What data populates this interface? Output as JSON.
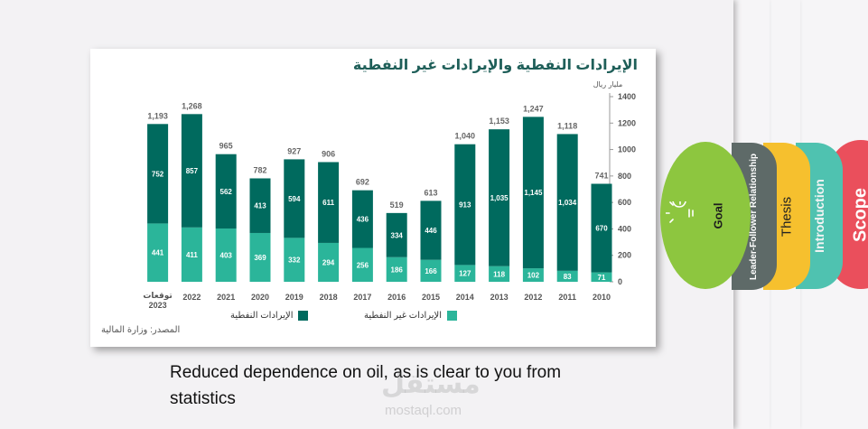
{
  "chart": {
    "title": "الإيرادات النفطية والإيرادات غير النفطية",
    "unit": "مليار ريال",
    "source": "المصدر: وزارة المالية",
    "legend": {
      "oil": "الإيرادات النفطية",
      "non_oil": "الإيرادات غير النفطية"
    }
  },
  "chart_data": {
    "type": "bar",
    "stacked": true,
    "categories": [
      "2010",
      "2011",
      "2012",
      "2013",
      "2014",
      "2015",
      "2016",
      "2017",
      "2018",
      "2019",
      "2020",
      "2021",
      "2022",
      "توقعات 2023"
    ],
    "series": [
      {
        "name": "الإيرادات غير النفطية",
        "values": [
          71,
          83,
          102,
          118,
          127,
          166,
          186,
          256,
          294,
          332,
          369,
          403,
          411,
          441
        ]
      },
      {
        "name": "الإيرادات النفطية",
        "values": [
          670,
          1034,
          1145,
          1035,
          913,
          446,
          334,
          436,
          611,
          594,
          413,
          562,
          857,
          752
        ]
      }
    ],
    "totals": [
      "741",
      "1,118",
      "1,247",
      "1,153",
      "1,040",
      "613",
      "519",
      "692",
      "906",
      "927",
      "782",
      "965",
      "1,268",
      "1,193"
    ],
    "ylabel": "مليار ريال",
    "ylim": [
      0,
      1400
    ],
    "yticks": [
      0,
      200,
      400,
      600,
      800,
      1000,
      1200,
      1400
    ],
    "colors": {
      "oil": "#006a5e",
      "non_oil": "#2bb59a"
    },
    "legend_position": "bottom",
    "grid": false
  },
  "caption": "Reduced dependence on oil, as is clear to you from statistics",
  "watermark": {
    "arabic": "مستقل",
    "url": "mostaql.com"
  },
  "tabs": [
    {
      "label": "Goal",
      "color": "#8dc63f"
    },
    {
      "label": "Leader-Follower Relationship",
      "color": "#5e6a68"
    },
    {
      "label": "Thesis",
      "color": "#f6c02e"
    },
    {
      "label": "Introduction",
      "color": "#4fc2b0"
    },
    {
      "label": "Scope",
      "color": "#ea4f5c"
    }
  ],
  "icons": {
    "goal_icon": "lightbulb-icon"
  }
}
